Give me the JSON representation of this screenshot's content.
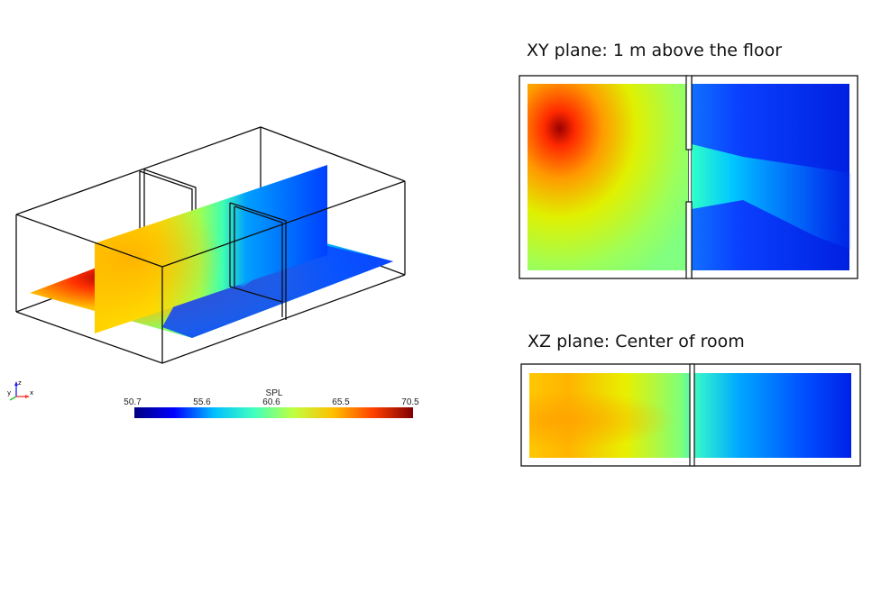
{
  "views": {
    "xy_title": "XY plane: 1 m above the floor",
    "xz_title": "XZ plane: Center of room"
  },
  "legend": {
    "title": "SPL",
    "ticks": [
      "50.7",
      "55.6",
      "60.6",
      "65.5",
      "70.5"
    ],
    "min": 50.7,
    "max": 70.5,
    "colormap": [
      "#00007f",
      "#0000ff",
      "#00bfff",
      "#40ffbf",
      "#bfff40",
      "#ffbf00",
      "#ff4000",
      "#7f0000"
    ]
  },
  "axes": {
    "x": "x",
    "y": "y",
    "z": "z"
  }
}
